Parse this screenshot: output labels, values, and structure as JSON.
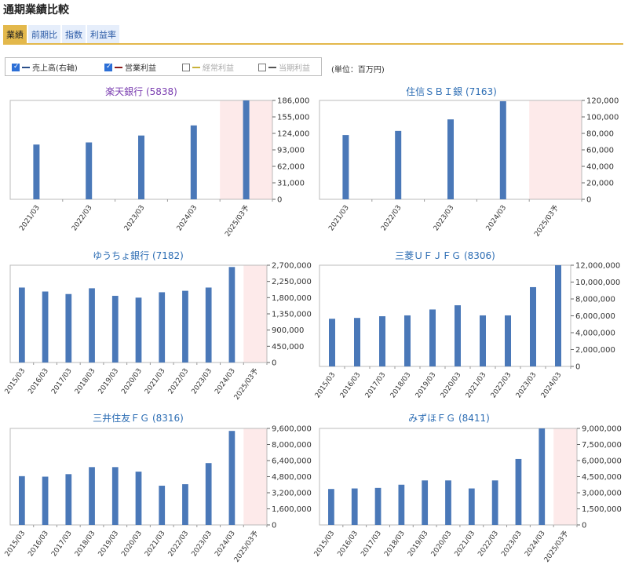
{
  "page_title": "通期業績比較",
  "tabs": [
    "業績",
    "前期比",
    "指数",
    "利益率"
  ],
  "legend": [
    {
      "label": "売上高(右軸)",
      "checked": true,
      "color": "#2b4f8a"
    },
    {
      "label": "営業利益",
      "checked": true,
      "color": "#8b1a1a"
    },
    {
      "label": "経常利益",
      "checked": false,
      "color": "#c9b23a"
    },
    {
      "label": "当期利益",
      "checked": false,
      "color": "#555555"
    }
  ],
  "unit_label": "(単位：百万円)",
  "colors": {
    "bar": "#4a78b8",
    "forecast_bg": "#fdeaea",
    "title_purple": "#7a3db0",
    "title_blue": "#2b6cb3"
  },
  "chart_data": [
    {
      "type": "bar",
      "title": "楽天銀行 (5838)",
      "title_color": "#7a3db0",
      "categories": [
        "2021/03",
        "2022/03",
        "2023/03",
        "2024/03",
        "2025/03予"
      ],
      "values": [
        103000,
        107000,
        120000,
        139000,
        186000
      ],
      "ylim": [
        0,
        186000
      ],
      "yticks": [
        "186,000",
        "155,000",
        "124,000",
        "93,000",
        "62,000",
        "31,000",
        "0"
      ],
      "forecast_index": 4
    },
    {
      "type": "bar",
      "title": "住信ＳＢＩ銀 (7163)",
      "title_color": "#2b6cb3",
      "categories": [
        "2021/03",
        "2022/03",
        "2023/03",
        "2024/03",
        "2025/03予"
      ],
      "values": [
        78000,
        83000,
        97000,
        119000,
        null
      ],
      "ylim": [
        0,
        120000
      ],
      "yticks": [
        "120,000",
        "100,000",
        "80,000",
        "60,000",
        "40,000",
        "20,000",
        "0"
      ],
      "forecast_index": 4
    },
    {
      "type": "bar",
      "title": "ゆうちょ銀行 (7182)",
      "title_color": "#2b6cb3",
      "categories": [
        "2015/03",
        "2016/03",
        "2017/03",
        "2018/03",
        "2019/03",
        "2020/03",
        "2021/03",
        "2022/03",
        "2023/03",
        "2024/03",
        "2025/03予"
      ],
      "values": [
        2080000,
        1970000,
        1900000,
        2060000,
        1850000,
        1800000,
        1950000,
        1990000,
        2080000,
        2650000,
        null
      ],
      "ylim": [
        0,
        2700000
      ],
      "yticks": [
        "2,700,000",
        "2,250,000",
        "1,800,000",
        "1,350,000",
        "900,000",
        "450,000",
        "0"
      ],
      "forecast_index": 10
    },
    {
      "type": "bar",
      "title": "三菱ＵＦＪＦＧ (8306)",
      "title_color": "#2b6cb3",
      "categories": [
        "2015/03",
        "2016/03",
        "2017/03",
        "2018/03",
        "2019/03",
        "2020/03",
        "2021/03",
        "2022/03",
        "2023/03",
        "2024/03"
      ],
      "values": [
        5650000,
        5750000,
        5950000,
        6050000,
        6750000,
        7250000,
        6050000,
        6050000,
        9400000,
        12100000
      ],
      "ylim": [
        0,
        12000000
      ],
      "yticks": [
        "12,000,000",
        "10,000,000",
        "8,000,000",
        "6,000,000",
        "4,000,000",
        "2,000,000",
        "0"
      ],
      "forecast_index": null
    },
    {
      "type": "bar",
      "title": "三井住友ＦＧ (8316)",
      "title_color": "#2b6cb3",
      "categories": [
        "2015/03",
        "2016/03",
        "2017/03",
        "2018/03",
        "2019/03",
        "2020/03",
        "2021/03",
        "2022/03",
        "2023/03",
        "2024/03",
        "2025/03予"
      ],
      "values": [
        4850000,
        4800000,
        5050000,
        5750000,
        5750000,
        5300000,
        3900000,
        4050000,
        6150000,
        9350000,
        null
      ],
      "ylim": [
        0,
        9600000
      ],
      "yticks": [
        "9,600,000",
        "8,000,000",
        "6,400,000",
        "4,800,000",
        "3,200,000",
        "1,600,000",
        "0"
      ],
      "forecast_index": 10
    },
    {
      "type": "bar",
      "title": "みずほＦＧ (8411)",
      "title_color": "#2b6cb3",
      "categories": [
        "2015/03",
        "2016/03",
        "2017/03",
        "2018/03",
        "2019/03",
        "2020/03",
        "2021/03",
        "2022/03",
        "2023/03",
        "2024/03",
        "2025/03予"
      ],
      "values": [
        3350000,
        3400000,
        3450000,
        3750000,
        4150000,
        4150000,
        3400000,
        4150000,
        6150000,
        9000000,
        null
      ],
      "ylim": [
        0,
        9000000
      ],
      "yticks": [
        "9,000,000",
        "7,500,000",
        "6,000,000",
        "4,500,000",
        "3,000,000",
        "1,500,000",
        "0"
      ],
      "forecast_index": 10
    }
  ]
}
